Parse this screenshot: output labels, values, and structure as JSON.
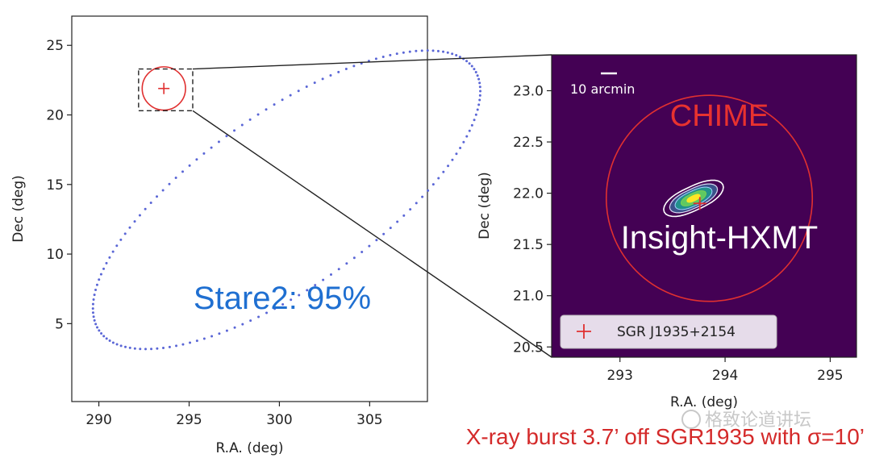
{
  "chart_data": [
    {
      "type": "scatter",
      "name": "stare2-localization",
      "xlabel": "R.A. (deg)",
      "ylabel": "Dec (deg)",
      "xlim": [
        288.5,
        308.2
      ],
      "ylim": [
        -0.6,
        27.1
      ],
      "xticks": [
        290,
        295,
        300,
        305
      ],
      "yticks": [
        5,
        10,
        15,
        20,
        25
      ],
      "ellipse_95": {
        "center": [
          300.4,
          13.9
        ],
        "semi_major_deg": 14.1,
        "semi_minor_deg": 5.6,
        "angle_deg": 45,
        "style": "dotted",
        "color": "#5a66d6"
      },
      "small_circle": {
        "center": [
          293.6,
          21.9
        ],
        "radius_deg": 1.2,
        "color": "#e03030"
      },
      "source": [
        293.6,
        21.9
      ],
      "zoom_box": {
        "ra": [
          292.2,
          295.2
        ],
        "dec": [
          20.3,
          23.3
        ]
      },
      "annotation": "Stare2: 95%",
      "grid": false
    },
    {
      "type": "heatmap",
      "name": "hxmt-zoom",
      "xlabel": "R.A. (deg)",
      "ylabel": "Dec (deg)",
      "xlim": [
        292.35,
        295.25
      ],
      "ylim": [
        20.4,
        23.35
      ],
      "xticks": [
        293,
        294,
        295
      ],
      "yticks": [
        20.5,
        21.0,
        21.5,
        22.0,
        22.5,
        23.0
      ],
      "background": "#440154",
      "chime_circle": {
        "center": [
          293.85,
          21.95
        ],
        "radius_deg": 0.98,
        "color": "#e03030"
      },
      "contour_center": [
        293.7,
        21.95
      ],
      "source": [
        293.76,
        21.9
      ],
      "labels": {
        "chime": "CHIME",
        "hxmt": "Insight-HXMT"
      },
      "scale_bar": "10 arcmin",
      "legend": {
        "entry": "SGR J1935+2154",
        "placement": "lower-left"
      },
      "grid": false
    }
  ],
  "caption": "X-ray burst 3.7’ off SGR1935 with σ=10’",
  "watermark": "格致论道讲坛",
  "colors": {
    "blue": "#1f6fd1",
    "red": "#e03030",
    "viridis_bg": "#440154"
  }
}
